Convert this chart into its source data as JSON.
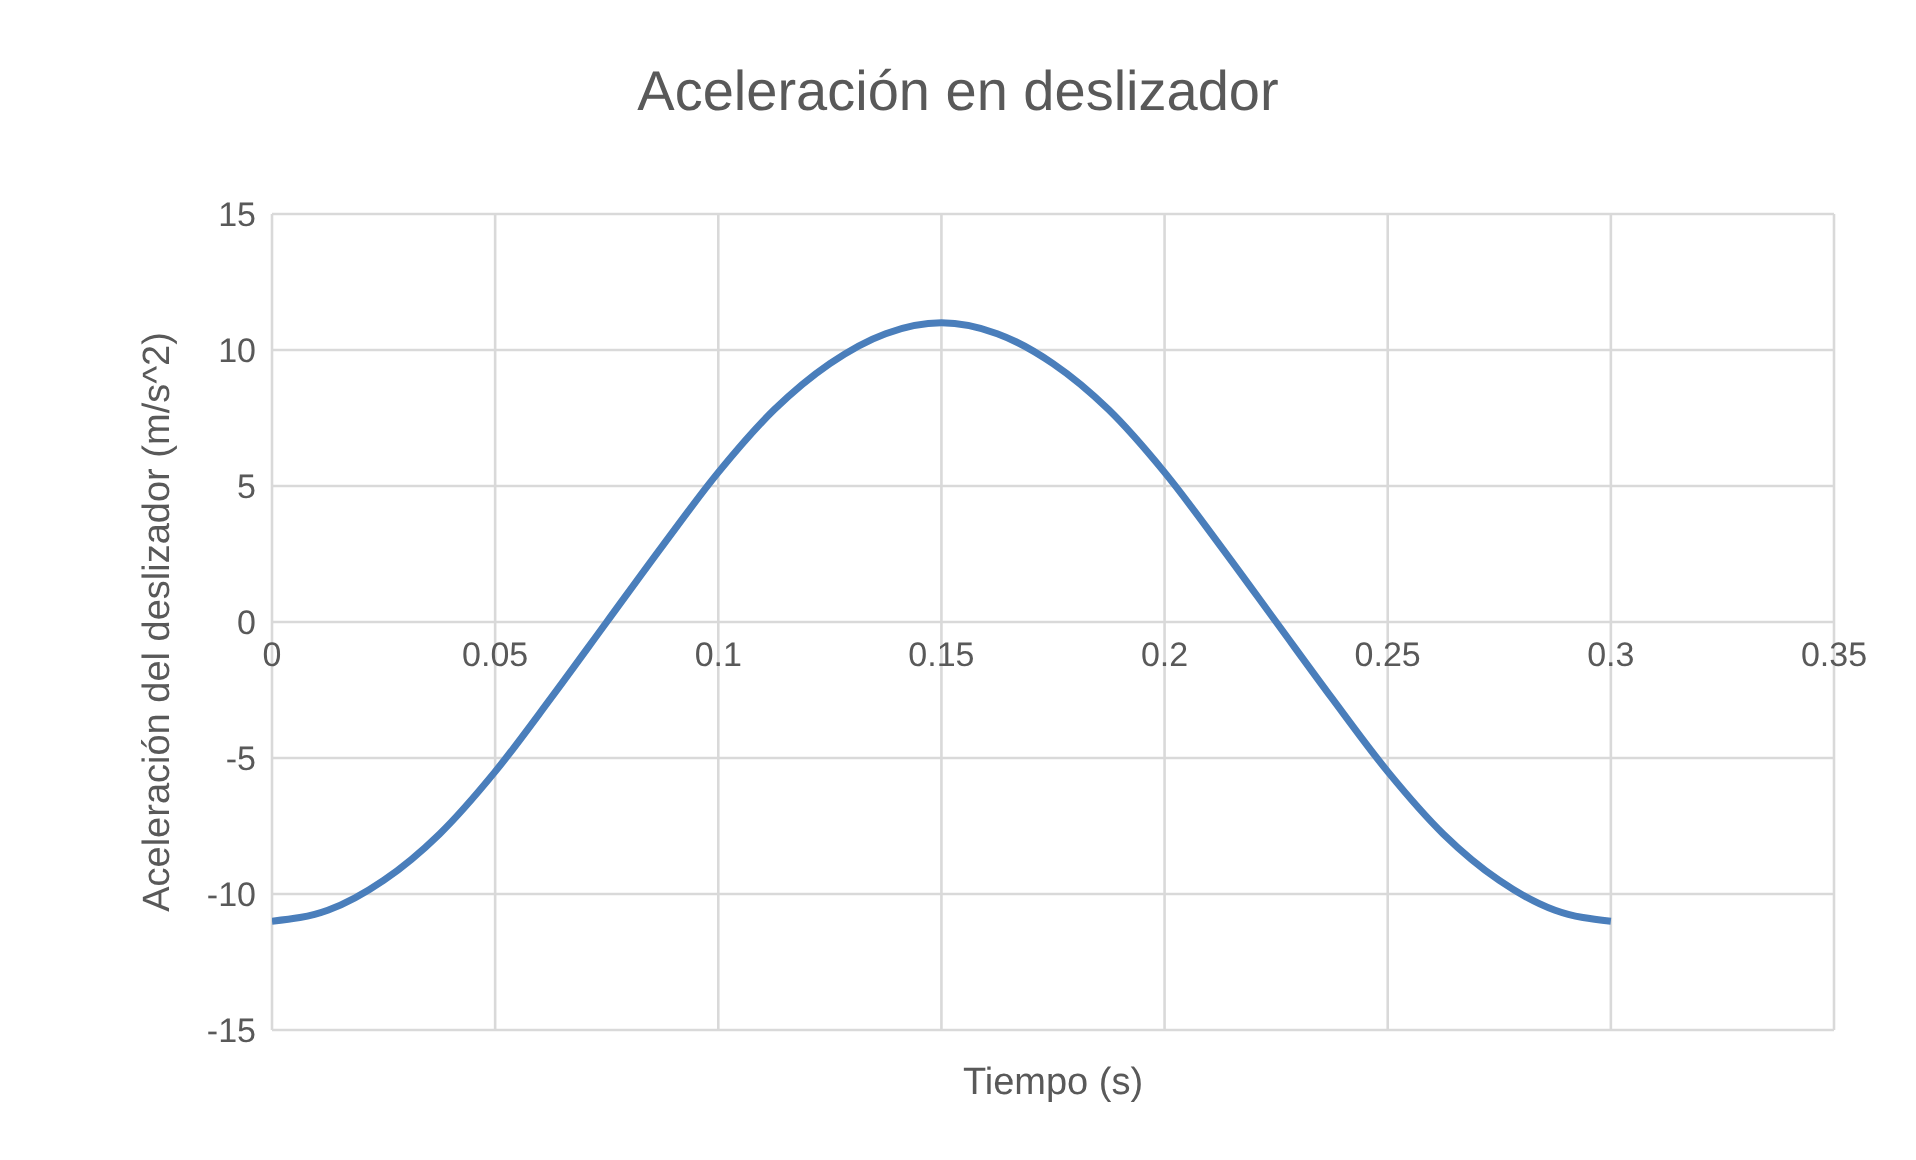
{
  "chart_data": {
    "type": "line",
    "title": "Aceleración en deslizador",
    "xlabel": "Tiempo (s)",
    "ylabel": "Aceleración del deslizador (m/s^2)",
    "x": [
      0,
      0.0125,
      0.025,
      0.0375,
      0.05,
      0.0625,
      0.075,
      0.0875,
      0.1,
      0.1125,
      0.125,
      0.1375,
      0.15,
      0.1625,
      0.175,
      0.1875,
      0.2,
      0.2125,
      0.225,
      0.2375,
      0.25,
      0.2625,
      0.275,
      0.2875,
      0.3
    ],
    "series": [
      {
        "color": "#4a7ebb",
        "values": [
          -11,
          -10.6,
          -9.5,
          -7.8,
          -5.5,
          -2.8,
          0,
          2.8,
          5.5,
          7.8,
          9.5,
          10.6,
          11,
          10.6,
          9.5,
          7.8,
          5.5,
          2.8,
          0,
          -2.8,
          -5.5,
          -7.8,
          -9.5,
          -10.6,
          -11
        ]
      }
    ],
    "xlim": [
      0,
      0.35
    ],
    "xticks": [
      0,
      0.05,
      0.1,
      0.15,
      0.2,
      0.25,
      0.3,
      0.35
    ],
    "ylim": [
      -15,
      15
    ],
    "yticks": [
      -15,
      -10,
      -5,
      0,
      5,
      10,
      15
    ],
    "grid": true,
    "marker": "none",
    "line_style": "solid",
    "legend": false
  }
}
